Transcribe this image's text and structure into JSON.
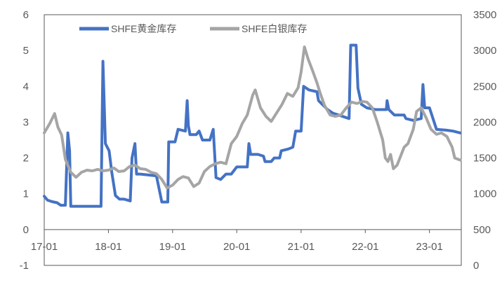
{
  "chart_data": {
    "type": "line",
    "title": "",
    "x_tick_labels": [
      "17-01",
      "18-01",
      "19-01",
      "20-01",
      "21-01",
      "22-01",
      "23-01"
    ],
    "x_range": [
      "2017-01",
      "2023-07"
    ],
    "y_left": {
      "min": -1,
      "max": 6,
      "ticks": [
        "-1",
        "0",
        "1",
        "2",
        "3",
        "4",
        "5",
        "6"
      ]
    },
    "y_right": {
      "min": 0,
      "max": 3500,
      "ticks": [
        "0",
        "500",
        "1000",
        "1500",
        "2000",
        "2500",
        "3000",
        "3500"
      ]
    },
    "grid": false,
    "legend_position": "top",
    "series": [
      {
        "name": "SHFE黄金库存",
        "axis": "left",
        "color": "#4472C4",
        "points": [
          [
            "2017-01-01",
            0.93
          ],
          [
            "2017-01-20",
            0.82
          ],
          [
            "2017-02-15",
            0.78
          ],
          [
            "2017-03-15",
            0.75
          ],
          [
            "2017-04-05",
            0.68
          ],
          [
            "2017-05-01",
            0.68
          ],
          [
            "2017-05-15",
            2.7
          ],
          [
            "2017-05-25",
            2.2
          ],
          [
            "2017-06-01",
            0.65
          ],
          [
            "2017-09-01",
            0.65
          ],
          [
            "2017-11-20",
            0.65
          ],
          [
            "2017-12-01",
            4.7
          ],
          [
            "2017-12-15",
            2.4
          ],
          [
            "2018-01-05",
            2.2
          ],
          [
            "2018-01-20",
            1.6
          ],
          [
            "2018-02-10",
            0.95
          ],
          [
            "2018-03-05",
            0.85
          ],
          [
            "2018-04-01",
            0.85
          ],
          [
            "2018-05-05",
            0.8
          ],
          [
            "2018-05-15",
            2.0
          ],
          [
            "2018-06-01",
            2.4
          ],
          [
            "2018-06-10",
            1.55
          ],
          [
            "2018-07-01",
            1.55
          ],
          [
            "2018-10-01",
            1.5
          ],
          [
            "2018-11-01",
            0.77
          ],
          [
            "2018-12-05",
            0.77
          ],
          [
            "2018-12-10",
            2.45
          ],
          [
            "2019-01-15",
            2.45
          ],
          [
            "2019-02-01",
            2.8
          ],
          [
            "2019-03-15",
            2.75
          ],
          [
            "2019-03-25",
            3.6
          ],
          [
            "2019-04-01",
            2.9
          ],
          [
            "2019-04-10",
            2.65
          ],
          [
            "2019-05-15",
            2.65
          ],
          [
            "2019-06-01",
            2.75
          ],
          [
            "2019-06-20",
            2.5
          ],
          [
            "2019-08-01",
            2.5
          ],
          [
            "2019-08-20",
            2.8
          ],
          [
            "2019-09-05",
            1.45
          ],
          [
            "2019-10-01",
            1.4
          ],
          [
            "2019-11-01",
            1.55
          ],
          [
            "2019-12-01",
            1.55
          ],
          [
            "2020-01-01",
            1.75
          ],
          [
            "2020-03-01",
            1.75
          ],
          [
            "2020-03-10",
            2.4
          ],
          [
            "2020-03-20",
            2.1
          ],
          [
            "2020-05-01",
            2.1
          ],
          [
            "2020-06-01",
            2.05
          ],
          [
            "2020-06-10",
            1.9
          ],
          [
            "2020-07-15",
            1.9
          ],
          [
            "2020-08-01",
            2.0
          ],
          [
            "2020-09-01",
            2.0
          ],
          [
            "2020-09-10",
            2.2
          ],
          [
            "2020-10-20",
            2.25
          ],
          [
            "2020-11-15",
            2.3
          ],
          [
            "2020-12-01",
            2.75
          ],
          [
            "2021-01-01",
            2.75
          ],
          [
            "2021-01-15",
            4.0
          ],
          [
            "2021-02-15",
            3.9
          ],
          [
            "2021-04-01",
            3.85
          ],
          [
            "2021-04-10",
            3.6
          ],
          [
            "2021-05-01",
            3.5
          ],
          [
            "2021-06-01",
            3.35
          ],
          [
            "2021-07-01",
            3.25
          ],
          [
            "2021-08-01",
            3.2
          ],
          [
            "2021-09-01",
            3.15
          ],
          [
            "2021-10-01",
            3.1
          ],
          [
            "2021-10-10",
            5.15
          ],
          [
            "2021-11-10",
            5.15
          ],
          [
            "2021-11-20",
            3.95
          ],
          [
            "2021-12-10",
            3.5
          ],
          [
            "2022-01-10",
            3.4
          ],
          [
            "2022-03-01",
            3.35
          ],
          [
            "2022-05-01",
            3.35
          ],
          [
            "2022-05-05",
            3.6
          ],
          [
            "2022-05-15",
            3.35
          ],
          [
            "2022-06-15",
            3.2
          ],
          [
            "2022-08-10",
            3.2
          ],
          [
            "2022-08-20",
            3.1
          ],
          [
            "2022-10-01",
            3.05
          ],
          [
            "2022-11-15",
            3.1
          ],
          [
            "2022-11-25",
            4.05
          ],
          [
            "2022-12-05",
            3.4
          ],
          [
            "2023-01-01",
            3.4
          ],
          [
            "2023-02-10",
            2.8
          ],
          [
            "2023-04-01",
            2.78
          ],
          [
            "2023-05-15",
            2.75
          ],
          [
            "2023-06-25",
            2.7
          ]
        ]
      },
      {
        "name": "SHFE白银库存",
        "axis": "right",
        "color": "#A5A5A5",
        "points": [
          [
            "2017-01-01",
            1850
          ],
          [
            "2017-02-01",
            1980
          ],
          [
            "2017-03-01",
            2120
          ],
          [
            "2017-03-20",
            1930
          ],
          [
            "2017-04-10",
            1820
          ],
          [
            "2017-05-01",
            1480
          ],
          [
            "2017-06-01",
            1300
          ],
          [
            "2017-07-01",
            1230
          ],
          [
            "2017-08-01",
            1300
          ],
          [
            "2017-09-01",
            1330
          ],
          [
            "2017-10-01",
            1320
          ],
          [
            "2017-11-01",
            1340
          ],
          [
            "2017-12-01",
            1320
          ],
          [
            "2018-01-01",
            1330
          ],
          [
            "2018-02-01",
            1360
          ],
          [
            "2018-03-01",
            1310
          ],
          [
            "2018-04-01",
            1320
          ],
          [
            "2018-05-01",
            1380
          ],
          [
            "2018-06-01",
            1400
          ],
          [
            "2018-07-01",
            1350
          ],
          [
            "2018-08-01",
            1340
          ],
          [
            "2018-09-01",
            1300
          ],
          [
            "2018-10-01",
            1280
          ],
          [
            "2018-11-01",
            1200
          ],
          [
            "2018-12-01",
            1080
          ],
          [
            "2019-01-01",
            1120
          ],
          [
            "2019-02-01",
            1200
          ],
          [
            "2019-03-01",
            1240
          ],
          [
            "2019-04-01",
            1220
          ],
          [
            "2019-05-01",
            1100
          ],
          [
            "2019-06-01",
            1150
          ],
          [
            "2019-07-01",
            1310
          ],
          [
            "2019-08-01",
            1380
          ],
          [
            "2019-09-01",
            1420
          ],
          [
            "2019-10-01",
            1440
          ],
          [
            "2019-11-01",
            1420
          ],
          [
            "2019-12-01",
            1700
          ],
          [
            "2020-01-01",
            1800
          ],
          [
            "2020-02-01",
            1980
          ],
          [
            "2020-03-01",
            2100
          ],
          [
            "2020-04-01",
            2380
          ],
          [
            "2020-04-15",
            2450
          ],
          [
            "2020-05-15",
            2200
          ],
          [
            "2020-06-15",
            2080
          ],
          [
            "2020-07-15",
            2010
          ],
          [
            "2020-08-15",
            2130
          ],
          [
            "2020-09-15",
            2250
          ],
          [
            "2020-10-15",
            2400
          ],
          [
            "2020-11-15",
            2360
          ],
          [
            "2020-12-15",
            2480
          ],
          [
            "2021-01-01",
            2700
          ],
          [
            "2021-01-20",
            3050
          ],
          [
            "2021-02-10",
            2880
          ],
          [
            "2021-03-10",
            2700
          ],
          [
            "2021-04-01",
            2550
          ],
          [
            "2021-04-20",
            2400
          ],
          [
            "2021-05-15",
            2230
          ],
          [
            "2021-06-15",
            2100
          ],
          [
            "2021-07-15",
            2080
          ],
          [
            "2021-08-15",
            2100
          ],
          [
            "2021-09-15",
            2200
          ],
          [
            "2021-10-15",
            2280
          ],
          [
            "2021-11-15",
            2260
          ],
          [
            "2021-12-15",
            2290
          ],
          [
            "2022-01-10",
            2280
          ],
          [
            "2022-02-10",
            2200
          ],
          [
            "2022-03-10",
            2000
          ],
          [
            "2022-04-10",
            1750
          ],
          [
            "2022-04-25",
            1500
          ],
          [
            "2022-05-10",
            1450
          ],
          [
            "2022-05-25",
            1550
          ],
          [
            "2022-06-10",
            1350
          ],
          [
            "2022-07-01",
            1400
          ],
          [
            "2022-07-20",
            1520
          ],
          [
            "2022-08-10",
            1650
          ],
          [
            "2022-09-01",
            1700
          ],
          [
            "2022-10-01",
            1900
          ],
          [
            "2022-10-20",
            2150
          ],
          [
            "2022-11-15",
            2200
          ],
          [
            "2022-12-15",
            2050
          ],
          [
            "2023-01-10",
            1900
          ],
          [
            "2023-02-10",
            1830
          ],
          [
            "2023-03-10",
            1850
          ],
          [
            "2023-04-10",
            1800
          ],
          [
            "2023-05-10",
            1650
          ],
          [
            "2023-05-25",
            1500
          ],
          [
            "2023-06-25",
            1470
          ]
        ]
      }
    ]
  }
}
